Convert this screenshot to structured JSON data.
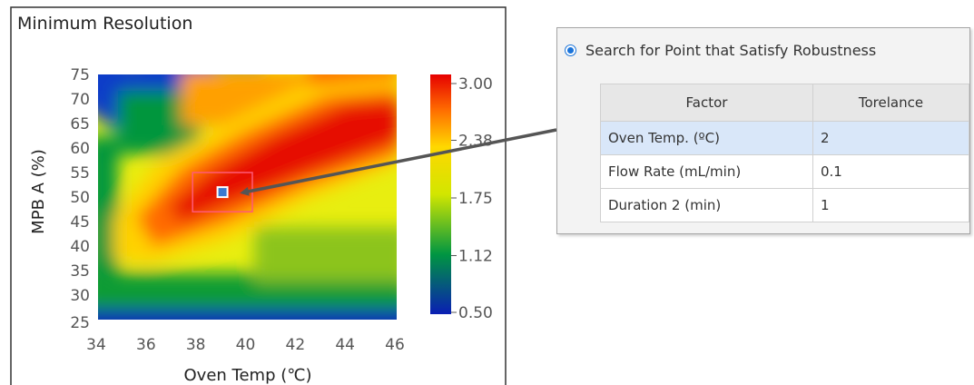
{
  "chart_data": {
    "type": "heatmap",
    "title": "Minimum Resolution",
    "xlabel": "Oven Temp (℃)",
    "ylabel": "MPB A (%)",
    "xlim": [
      34,
      46
    ],
    "ylim": [
      25,
      75
    ],
    "x_ticks": [
      "34",
      "36",
      "38",
      "40",
      "42",
      "44",
      "46"
    ],
    "y_ticks": [
      "25",
      "30",
      "35",
      "40",
      "45",
      "50",
      "55",
      "60",
      "65",
      "70",
      "75"
    ],
    "colorbar": {
      "range": [
        0.5,
        3.0
      ],
      "ticks": [
        "3.00",
        "2.38",
        "1.75",
        "1.12",
        "0.50"
      ],
      "colors": [
        "#0a1eb4",
        "#009641",
        "#d2e600",
        "#ffd700",
        "#ff6e00",
        "#e60000"
      ]
    },
    "optimum_point": {
      "x": 39,
      "y": 51
    },
    "robust_region": {
      "x": [
        37.8,
        40.2
      ],
      "y": [
        47,
        55
      ]
    }
  },
  "robustness_panel": {
    "option_label": "Search for Point that Satisfy Robustness",
    "columns": [
      "Factor",
      "Torelance"
    ],
    "rows": [
      {
        "factor": "Oven Temp. (ºC)",
        "tolerance": "2"
      },
      {
        "factor": "Flow Rate (mL/min)",
        "tolerance": "0.1"
      },
      {
        "factor": "Duration 2 (min)",
        "tolerance": "1"
      }
    ]
  }
}
